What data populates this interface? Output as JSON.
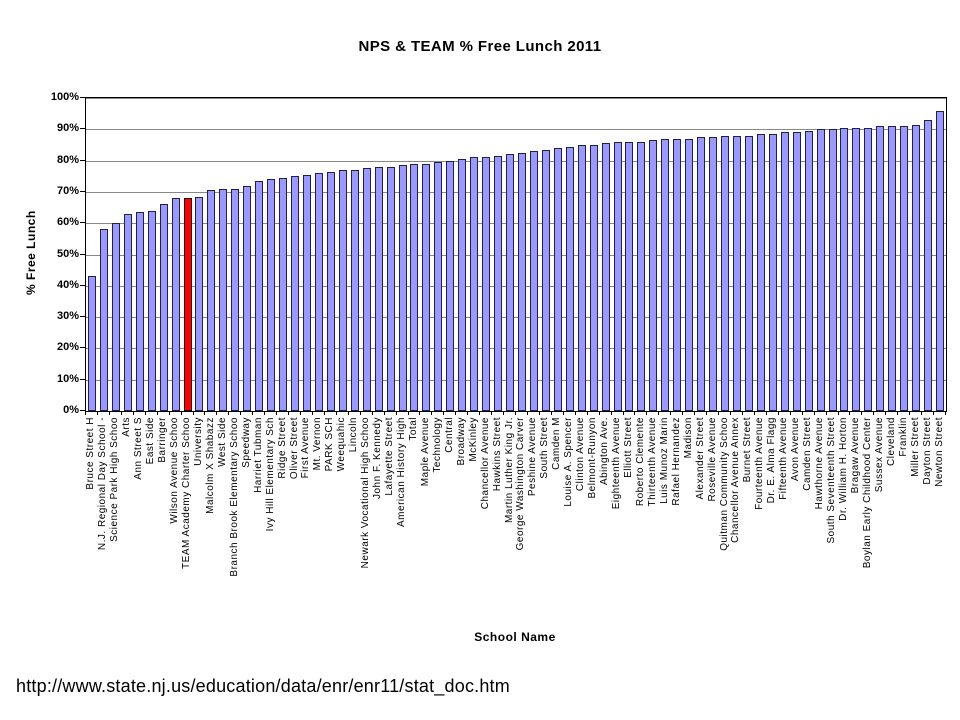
{
  "page": {
    "source_url": "http://www.state.nj.us/education/data/enr/enr11/stat_doc.htm"
  },
  "chart_data": {
    "type": "bar",
    "title": "NPS & TEAM % Free Lunch 2011",
    "xlabel": "School Name",
    "ylabel": "% Free Lunch",
    "ylim": [
      0,
      100
    ],
    "yticks": [
      0,
      10,
      20,
      30,
      40,
      50,
      60,
      70,
      80,
      90,
      100
    ],
    "ytick_suffix": "%",
    "grid": "horizontal",
    "legend": "none",
    "bar_color": "#9999FF",
    "highlight_color": "#FF0000",
    "highlight_category": "TEAM Academy Charter Schoo",
    "highlight_index": 8,
    "categories": [
      "Bruce Street H",
      "N.J. Regional Day School -",
      "Science Park High Schoo",
      "Arts",
      "Ann Street S",
      "East Side",
      "Barringer",
      "Wilson Avenue Schoo",
      "TEAM Academy Charter Schoo",
      "University",
      "Malcolm X Shabazz",
      "West Side",
      "Branch Brook Elementary Schoo",
      "Speedway",
      "Harriet Tubman",
      "Ivy Hill Elementary Sch",
      "Ridge Street",
      "Oliver Street",
      "First Avenue",
      "Mt. Vernon",
      "PARK SCH",
      "Weequahic",
      "Lincoln",
      "Newark Vocational High Schoo",
      "John F. Kennedy",
      "Lafayette Street",
      "American History High",
      "Total",
      "Maple Avenue",
      "Technology",
      "Central",
      "Broadway",
      "McKinley",
      "Chancellor Avenue",
      "Hawkins Street",
      "Martin Luther King Jr.",
      "George Washington Carver",
      "Peshine Avenue",
      "South Street",
      "Camden M",
      "Louise A. Spencer",
      "Clinton Avenue",
      "Belmont-Runyon",
      "Abington Ave.",
      "Eighteenth Avenue",
      "Elliott Street",
      "Roberto Clemente",
      "Thirteenth Avenue",
      "Luis Munoz Marin",
      "Rafael Hernandez",
      "Madison",
      "Alexander Street",
      "Roseville Avenue",
      "Quitman Community Schoo",
      "Chancellor Avenue Annex",
      "Burnet Street",
      "Fourteenth Avenue",
      "Dr. E. Alma Flagg",
      "Fifteenth Avenue",
      "Avon Avenue",
      "Camden Street",
      "Hawthorne Avenue",
      "South Seventeenth Street",
      "Dr. William H. Horton",
      "Bragaw Avenue",
      "Boylan Early Childhood Center",
      "Sussex Avenue",
      "Cleveland",
      "Franklin",
      "Miller Street",
      "Dayton Street",
      "Newton Street"
    ],
    "values": [
      43,
      58,
      60,
      63,
      63.5,
      64,
      66,
      68,
      68,
      68.5,
      70.5,
      71,
      71,
      72,
      73.5,
      74,
      74.5,
      75,
      75.5,
      76,
      76.5,
      77,
      77,
      77.5,
      78,
      78,
      78.5,
      79,
      79,
      79.5,
      80,
      80.5,
      81,
      81,
      81.5,
      82,
      82.5,
      83,
      83.5,
      84,
      84.5,
      85,
      85,
      85.5,
      86,
      86,
      86,
      86.5,
      87,
      87,
      87,
      87.5,
      87.5,
      88,
      88,
      88,
      88.5,
      88.5,
      89,
      89,
      89.5,
      90,
      90,
      90.5,
      90.5,
      90.5,
      91,
      91,
      91,
      91.5,
      93,
      96
    ]
  }
}
